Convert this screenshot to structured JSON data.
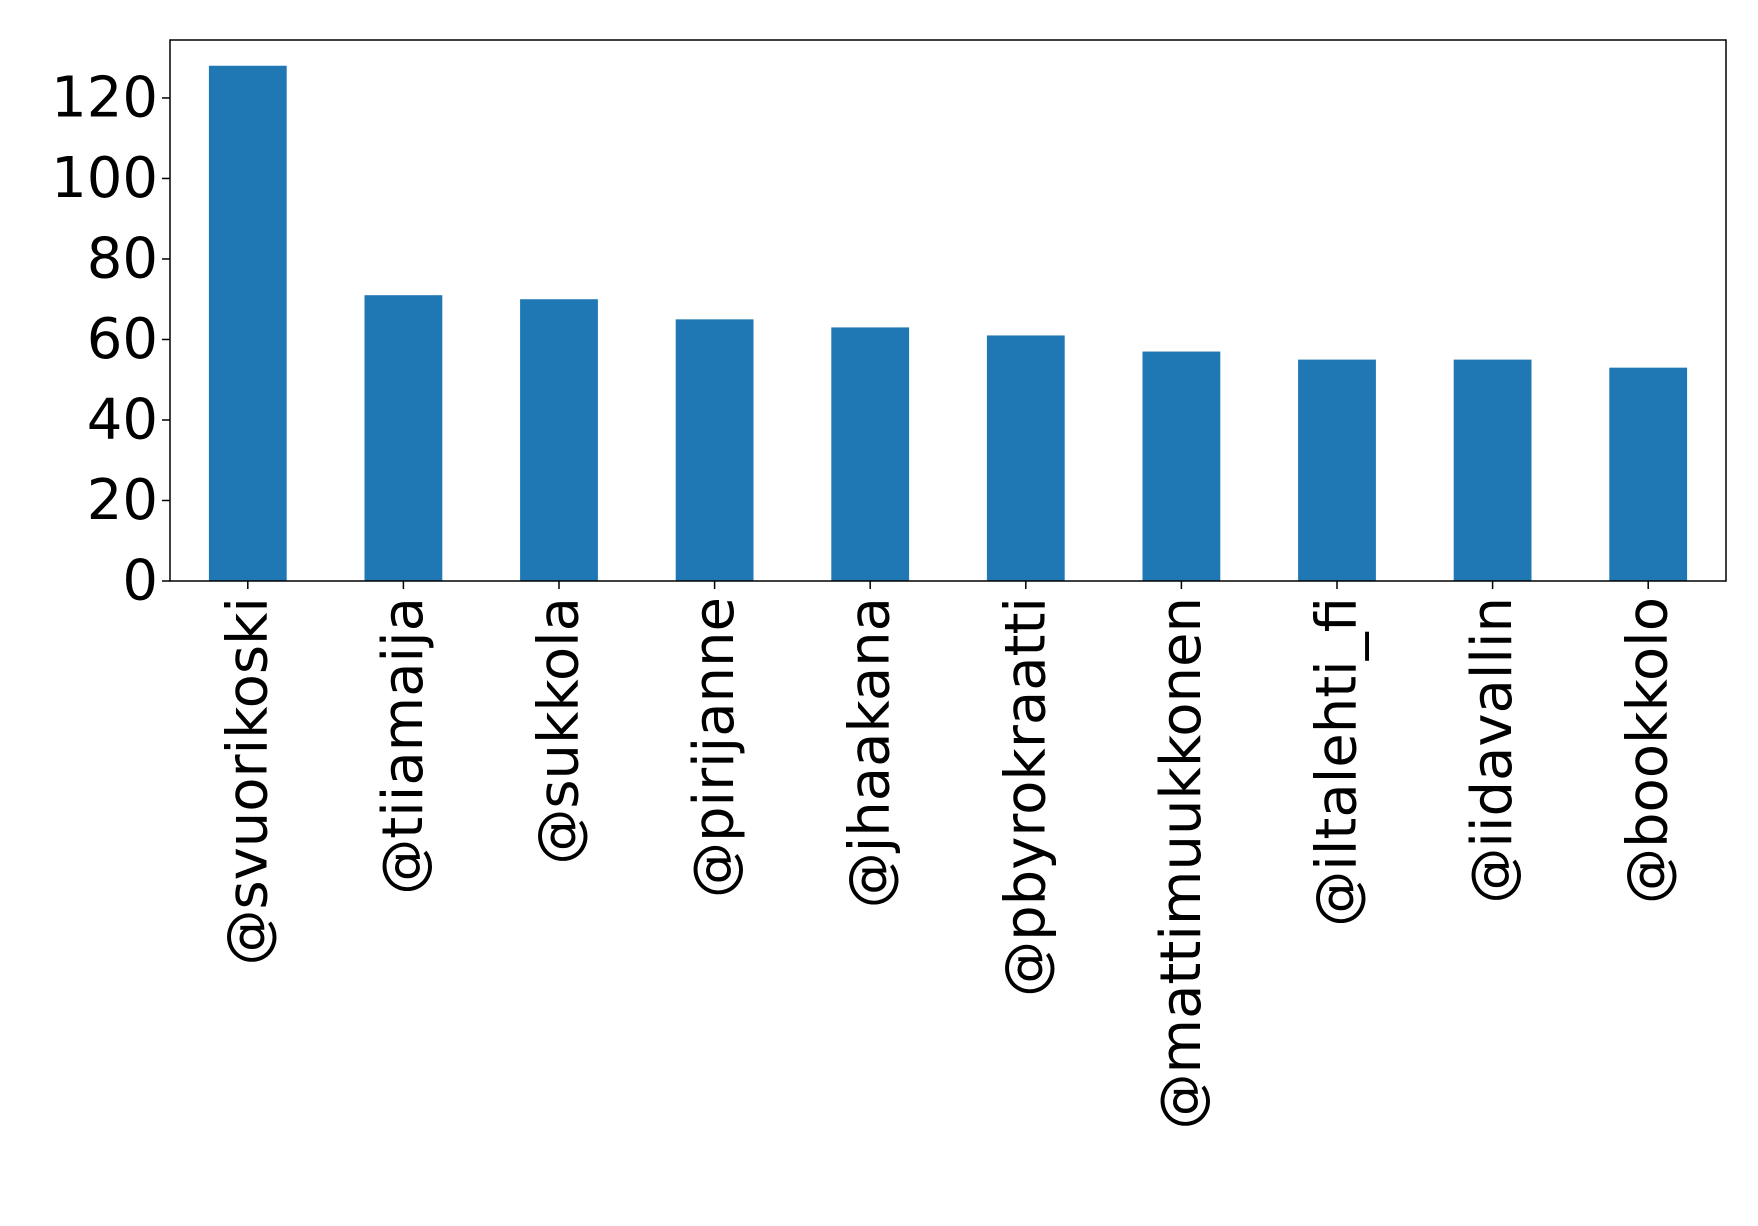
{
  "chart_data": {
    "type": "bar",
    "title": "",
    "xlabel": "",
    "ylabel": "",
    "categories": [
      "@svuorikoski",
      "@tiiamaija",
      "@sukkola",
      "@pirijanne",
      "@jhaakana",
      "@pbyrokraatti",
      "@mattimuukkonen",
      "@iltalehti_fi",
      "@iidavallin",
      "@bookkolo"
    ],
    "values": [
      128,
      71,
      70,
      65,
      63,
      61,
      57,
      55,
      55,
      53
    ],
    "ylim": [
      0,
      134.4
    ],
    "yticks": [
      0,
      20,
      40,
      60,
      80,
      100,
      120
    ],
    "ytick_labels": [
      "0",
      "20",
      "40",
      "60",
      "80",
      "100",
      "120"
    ],
    "bar_color": "#1f77b4",
    "grid": false,
    "legend": "none"
  }
}
